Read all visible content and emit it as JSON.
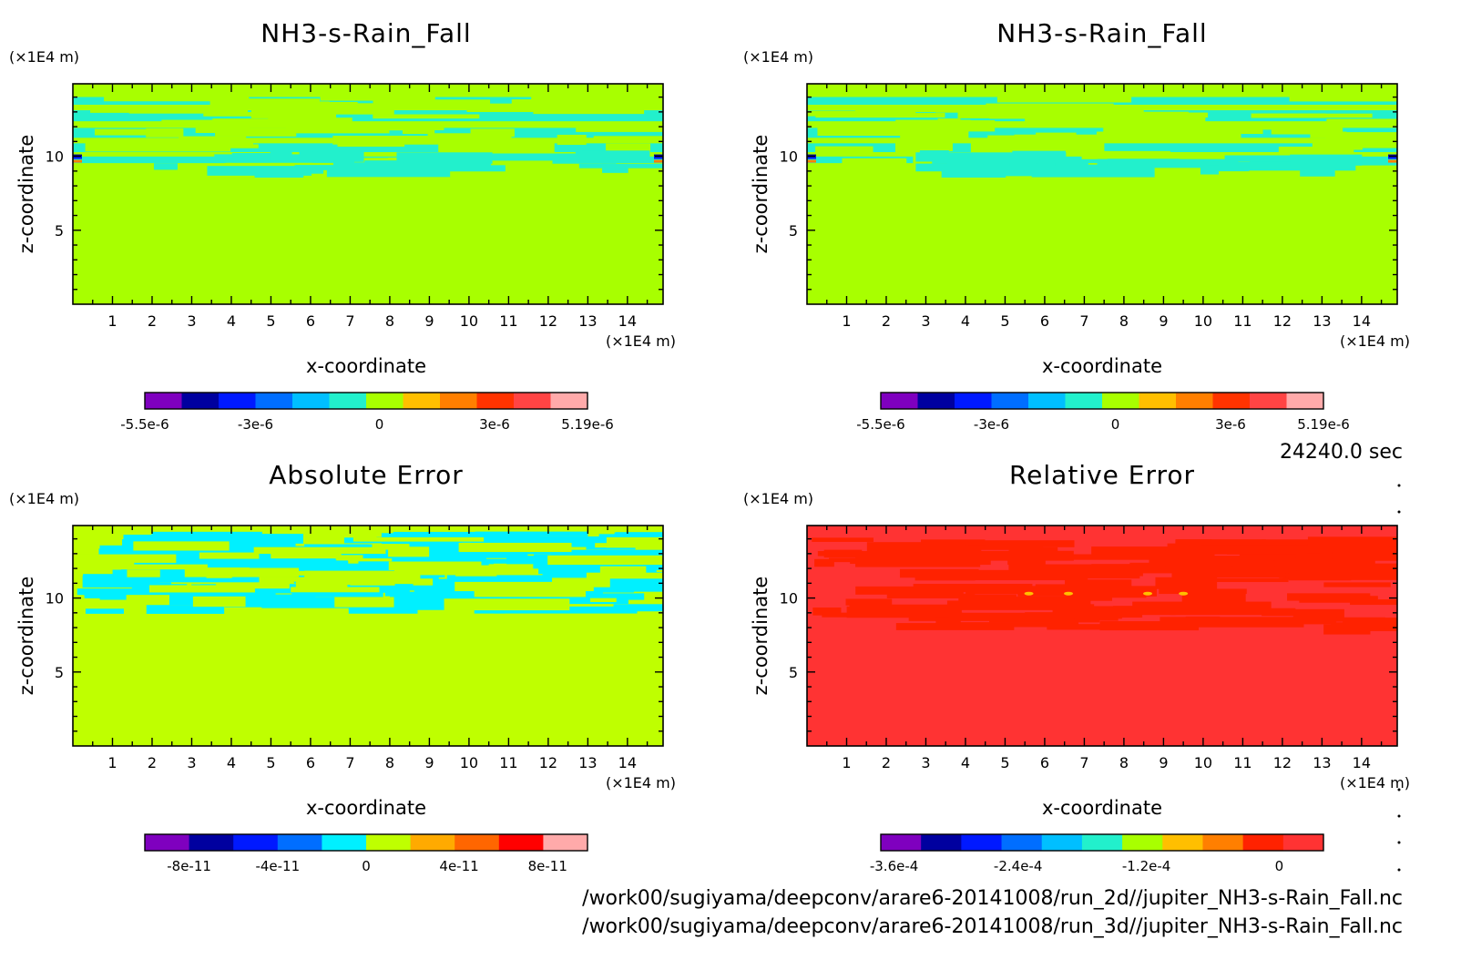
{
  "timestamp": "24240.0 sec",
  "source_files": [
    "/work00/sugiyama/deepconv/arare6-20141008/run_2d//jupiter_NH3-s-Rain_Fall.nc",
    "/work00/sugiyama/deepconv/arare6-20141008/run_3d//jupiter_NH3-s-Rain_Fall.nc"
  ],
  "colors": {
    "field_background": "#a8ff00",
    "cyan_band": "#22f0cc",
    "abs_background": "#bfff00",
    "abs_band": "#00f0ff",
    "rel_background": "#ff3333",
    "rel_band": "#ff2200"
  },
  "chart_data": [
    {
      "type": "heatmap",
      "id": "p1",
      "title": "NH3-s-Rain_Fall",
      "xlabel": "x-coordinate",
      "ylabel": "z-coordinate",
      "x_unit": "(×1E4 m)",
      "y_unit": "(×1E4 m)",
      "x_ticks": [
        "1",
        "2",
        "3",
        "4",
        "5",
        "6",
        "7",
        "8",
        "9",
        "10",
        "11",
        "12",
        "13",
        "14"
      ],
      "y_ticks": [
        "5",
        "10"
      ],
      "xlim": [
        0,
        14.9
      ],
      "ylim": [
        0,
        14.9
      ],
      "colorbar": {
        "labels": [
          "-5.5e-6",
          "-3e-6",
          "0",
          "3e-6",
          "5.19e-6"
        ],
        "colors": [
          "#7f00bf",
          "#00009f",
          "#0019ff",
          "#006eff",
          "#00bfff",
          "#22f0cc",
          "#a8ff00",
          "#ffbf00",
          "#ff7f00",
          "#ff3300",
          "#ff4444",
          "#ffaaaa"
        ]
      }
    },
    {
      "type": "heatmap",
      "id": "p2",
      "title": "NH3-s-Rain_Fall",
      "xlabel": "x-coordinate",
      "ylabel": "z-coordinate",
      "x_unit": "(×1E4 m)",
      "y_unit": "(×1E4 m)",
      "x_ticks": [
        "1",
        "2",
        "3",
        "4",
        "5",
        "6",
        "7",
        "8",
        "9",
        "10",
        "11",
        "12",
        "13",
        "14"
      ],
      "y_ticks": [
        "5",
        "10"
      ],
      "xlim": [
        0,
        14.9
      ],
      "ylim": [
        0,
        14.9
      ],
      "colorbar": {
        "labels": [
          "-5.5e-6",
          "-3e-6",
          "0",
          "3e-6",
          "5.19e-6"
        ],
        "colors": [
          "#7f00bf",
          "#00009f",
          "#0019ff",
          "#006eff",
          "#00bfff",
          "#22f0cc",
          "#a8ff00",
          "#ffbf00",
          "#ff7f00",
          "#ff3300",
          "#ff4444",
          "#ffaaaa"
        ]
      }
    },
    {
      "type": "heatmap",
      "id": "p3",
      "title": "Absolute Error",
      "xlabel": "x-coordinate",
      "ylabel": "z-coordinate",
      "x_unit": "(×1E4 m)",
      "y_unit": "(×1E4 m)",
      "x_ticks": [
        "1",
        "2",
        "3",
        "4",
        "5",
        "6",
        "7",
        "8",
        "9",
        "10",
        "11",
        "12",
        "13",
        "14"
      ],
      "y_ticks": [
        "5",
        "10"
      ],
      "xlim": [
        0,
        14.9
      ],
      "ylim": [
        0,
        14.9
      ],
      "colorbar": {
        "labels": [
          "-8e-11",
          "-4e-11",
          "0",
          "4e-11",
          "8e-11"
        ],
        "colors": [
          "#7f00bf",
          "#00009f",
          "#0019ff",
          "#006eff",
          "#00f0ff",
          "#bfff00",
          "#ffaa00",
          "#ff6600",
          "#ff0000",
          "#ffaaaa"
        ]
      }
    },
    {
      "type": "heatmap",
      "id": "p4",
      "title": "Relative Error",
      "xlabel": "x-coordinate",
      "ylabel": "z-coordinate",
      "x_unit": "(×1E4 m)",
      "y_unit": "(×1E4 m)",
      "x_ticks": [
        "1",
        "2",
        "3",
        "4",
        "5",
        "6",
        "7",
        "8",
        "9",
        "10",
        "11",
        "12",
        "13",
        "14"
      ],
      "y_ticks": [
        "5",
        "10"
      ],
      "xlim": [
        0,
        14.9
      ],
      "ylim": [
        0,
        14.9
      ],
      "colorbar": {
        "labels": [
          "-3.6e-4",
          "-2.4e-4",
          "-1.2e-4",
          "0"
        ],
        "colors": [
          "#7f00bf",
          "#00009f",
          "#0019ff",
          "#006eff",
          "#00bfff",
          "#22f0cc",
          "#a8ff00",
          "#ffbf00",
          "#ff7f00",
          "#ff2200",
          "#ff3333"
        ]
      }
    }
  ]
}
